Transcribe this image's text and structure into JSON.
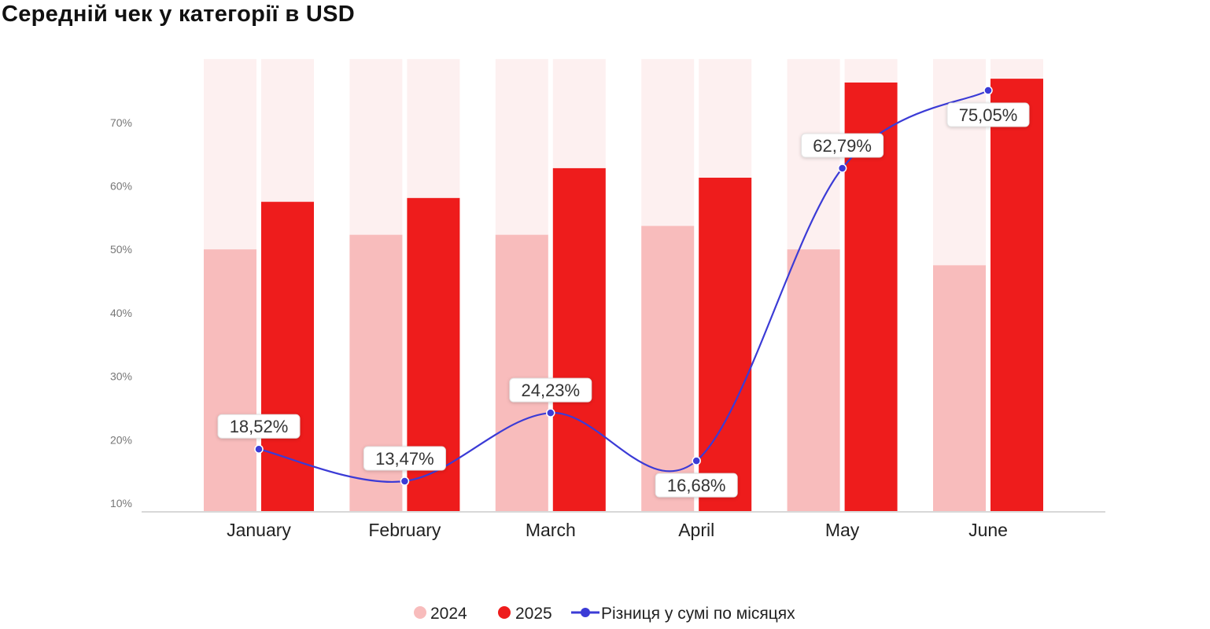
{
  "title": "Середній чек у категорії в USD",
  "colors": {
    "y2024": "#f8bcbc",
    "y2025": "#ee1c1c",
    "background_bar": "#fdf0f0",
    "line": "#3b3bd6"
  },
  "chart_data": {
    "type": "bar",
    "title": "Середній чек у категорії в USD",
    "categories": [
      "January",
      "February",
      "March",
      "April",
      "May",
      "June"
    ],
    "ylim": [
      8.6,
      80
    ],
    "yticks": [
      "10%",
      "20%",
      "30%",
      "40%",
      "50%",
      "60%",
      "70%"
    ],
    "ytick_values": [
      10,
      20,
      30,
      40,
      50,
      60,
      70
    ],
    "background_max": 80,
    "series": [
      {
        "name": "2024",
        "type": "bar",
        "values": [
          50.0,
          52.3,
          52.3,
          53.7,
          50.0,
          47.5
        ]
      },
      {
        "name": "2025",
        "type": "bar",
        "values": [
          57.5,
          58.1,
          62.8,
          61.3,
          76.3,
          76.9
        ]
      },
      {
        "name": "Різниця у сумі по місяцях",
        "type": "line",
        "values": [
          18.52,
          13.47,
          24.23,
          16.68,
          62.79,
          75.05
        ],
        "labels": [
          "18,52%",
          "13,47%",
          "24,23%",
          "16,68%",
          "62,79%",
          "75,05%"
        ]
      }
    ],
    "legend": {
      "position": "bottom-center",
      "items": [
        "2024",
        "2025",
        "Різниця у сумі по місяцях"
      ]
    }
  }
}
